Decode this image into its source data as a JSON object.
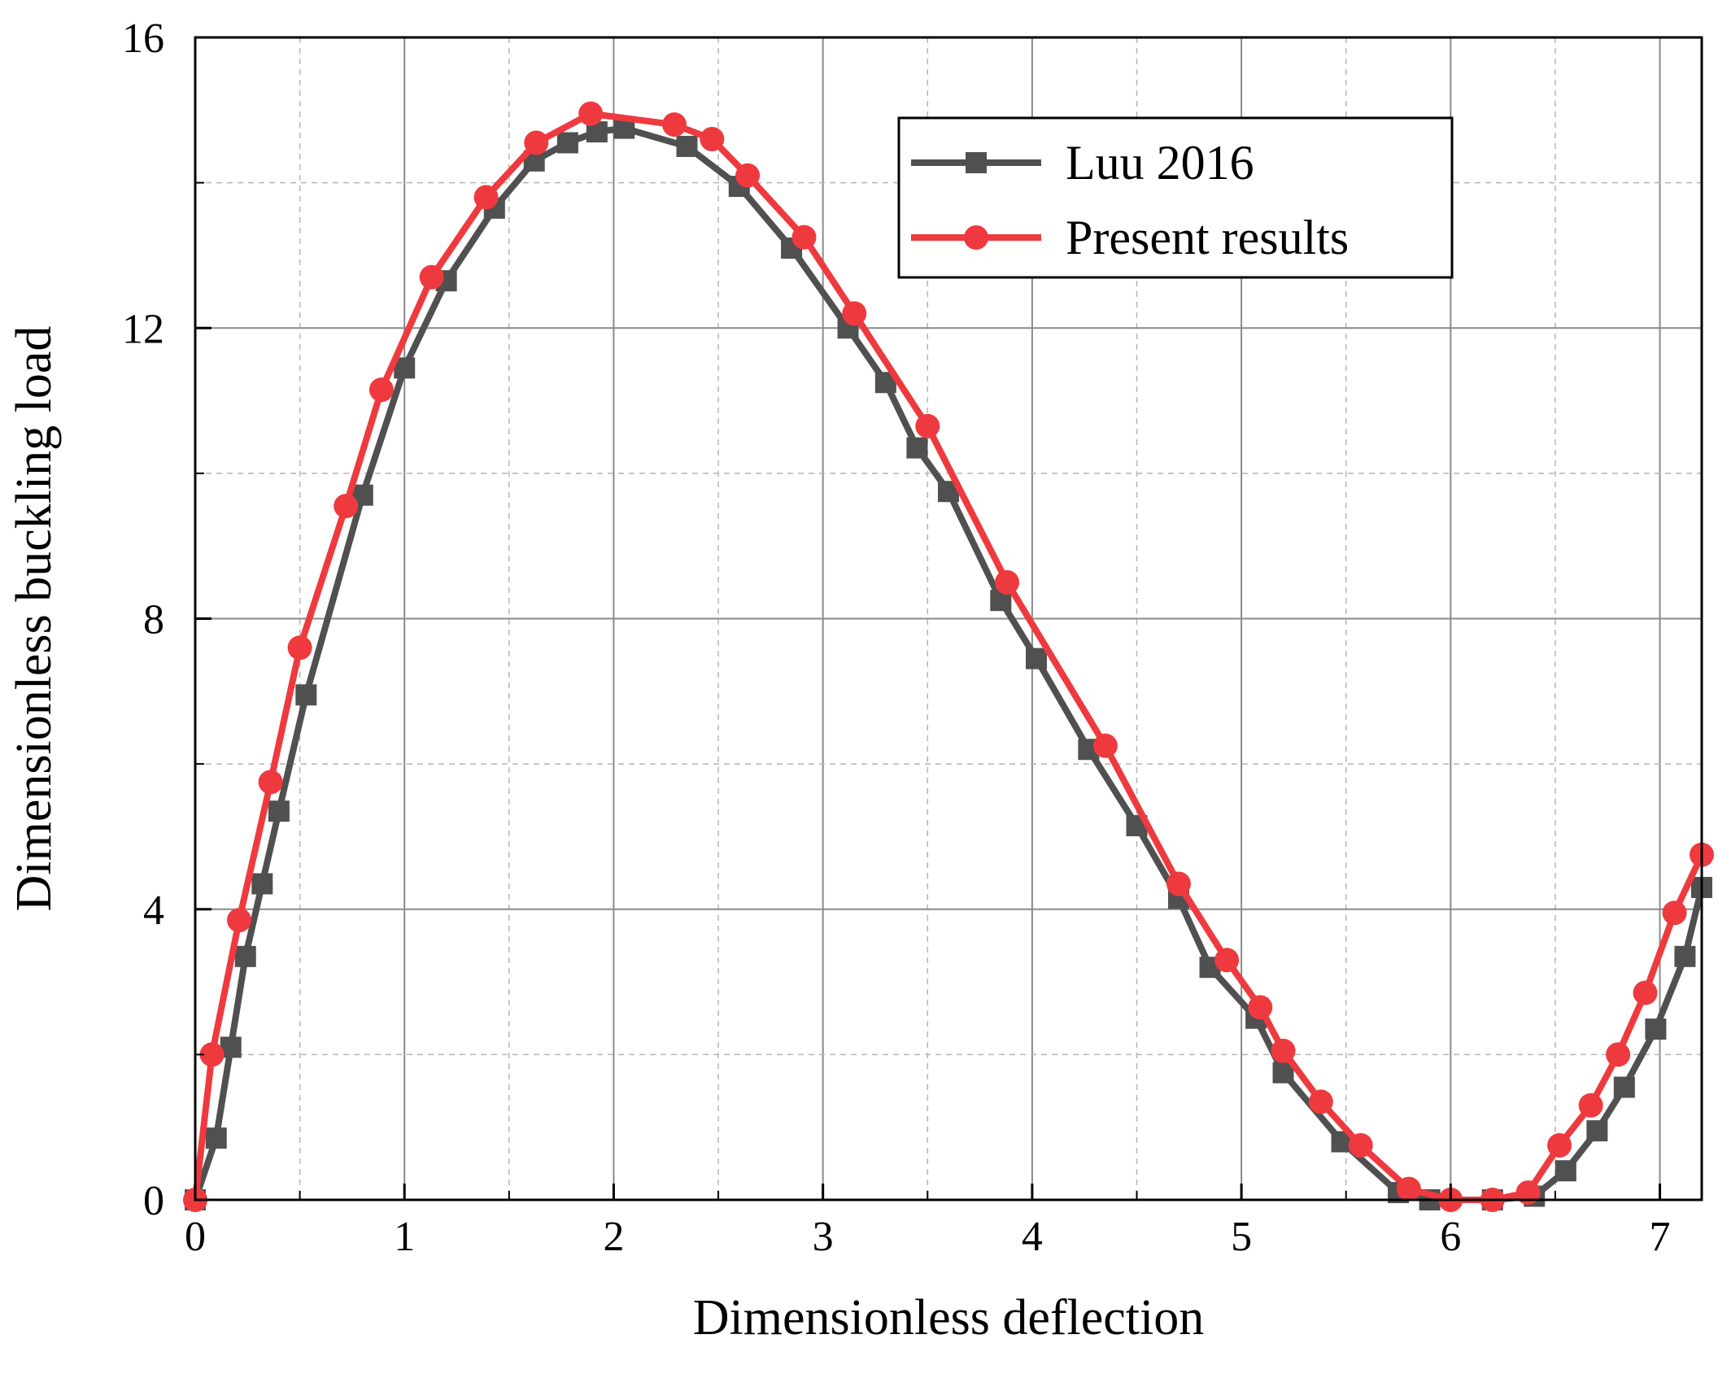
{
  "chart_data": {
    "type": "line",
    "title": "",
    "xlabel": "Dimensionless deflection",
    "ylabel": "Dimensionless buckling load",
    "xlim": [
      0,
      7.2
    ],
    "ylim": [
      0,
      16
    ],
    "x_ticks": [
      0,
      1,
      2,
      3,
      4,
      5,
      6,
      7
    ],
    "x_tick_labels": [
      "0",
      "1",
      "2",
      "3",
      "4",
      "5",
      "6",
      "7"
    ],
    "y_ticks": [
      0,
      4,
      8,
      12,
      16
    ],
    "y_tick_labels": [
      "0",
      "4",
      "8",
      "12",
      "16"
    ],
    "grid": true,
    "legend_position": "top-right",
    "series": [
      {
        "name": "Luu 2016",
        "color": "#505050",
        "marker": "square",
        "points": [
          [
            0.0,
            0.0
          ],
          [
            0.1,
            0.85
          ],
          [
            0.17,
            2.1
          ],
          [
            0.24,
            3.35
          ],
          [
            0.32,
            4.35
          ],
          [
            0.4,
            5.35
          ],
          [
            0.53,
            6.95
          ],
          [
            0.8,
            9.7
          ],
          [
            1.0,
            11.45
          ],
          [
            1.2,
            12.65
          ],
          [
            1.43,
            13.65
          ],
          [
            1.62,
            14.3
          ],
          [
            1.78,
            14.55
          ],
          [
            1.92,
            14.7
          ],
          [
            2.05,
            14.75
          ],
          [
            2.35,
            14.5
          ],
          [
            2.6,
            13.95
          ],
          [
            2.85,
            13.1
          ],
          [
            3.12,
            12.0
          ],
          [
            3.3,
            11.25
          ],
          [
            3.45,
            10.35
          ],
          [
            3.6,
            9.75
          ],
          [
            3.85,
            8.25
          ],
          [
            4.02,
            7.45
          ],
          [
            4.27,
            6.2
          ],
          [
            4.5,
            5.15
          ],
          [
            4.7,
            4.15
          ],
          [
            4.85,
            3.2
          ],
          [
            5.07,
            2.5
          ],
          [
            5.2,
            1.75
          ],
          [
            5.48,
            0.8
          ],
          [
            5.75,
            0.1
          ],
          [
            5.9,
            0.0
          ],
          [
            6.2,
            0.0
          ],
          [
            6.4,
            0.05
          ],
          [
            6.55,
            0.4
          ],
          [
            6.7,
            0.95
          ],
          [
            6.83,
            1.55
          ],
          [
            6.98,
            2.35
          ],
          [
            7.12,
            3.35
          ],
          [
            7.2,
            4.3
          ]
        ]
      },
      {
        "name": "Present results",
        "color": "#ee3a3f",
        "marker": "circle",
        "points": [
          [
            0.0,
            0.0
          ],
          [
            0.08,
            2.0
          ],
          [
            0.21,
            3.85
          ],
          [
            0.36,
            5.75
          ],
          [
            0.5,
            7.6
          ],
          [
            0.72,
            9.55
          ],
          [
            0.89,
            11.15
          ],
          [
            1.13,
            12.7
          ],
          [
            1.39,
            13.8
          ],
          [
            1.63,
            14.55
          ],
          [
            1.89,
            14.95
          ],
          [
            2.29,
            14.8
          ],
          [
            2.47,
            14.6
          ],
          [
            2.64,
            14.1
          ],
          [
            2.91,
            13.25
          ],
          [
            3.15,
            12.2
          ],
          [
            3.5,
            10.65
          ],
          [
            3.88,
            8.5
          ],
          [
            4.35,
            6.25
          ],
          [
            4.7,
            4.35
          ],
          [
            4.93,
            3.3
          ],
          [
            5.09,
            2.65
          ],
          [
            5.2,
            2.05
          ],
          [
            5.38,
            1.35
          ],
          [
            5.57,
            0.75
          ],
          [
            5.8,
            0.15
          ],
          [
            6.0,
            0.0
          ],
          [
            6.2,
            0.0
          ],
          [
            6.37,
            0.1
          ],
          [
            6.52,
            0.75
          ],
          [
            6.67,
            1.3
          ],
          [
            6.8,
            2.0
          ],
          [
            6.93,
            2.85
          ],
          [
            7.07,
            3.95
          ],
          [
            7.2,
            4.75
          ]
        ]
      }
    ]
  }
}
